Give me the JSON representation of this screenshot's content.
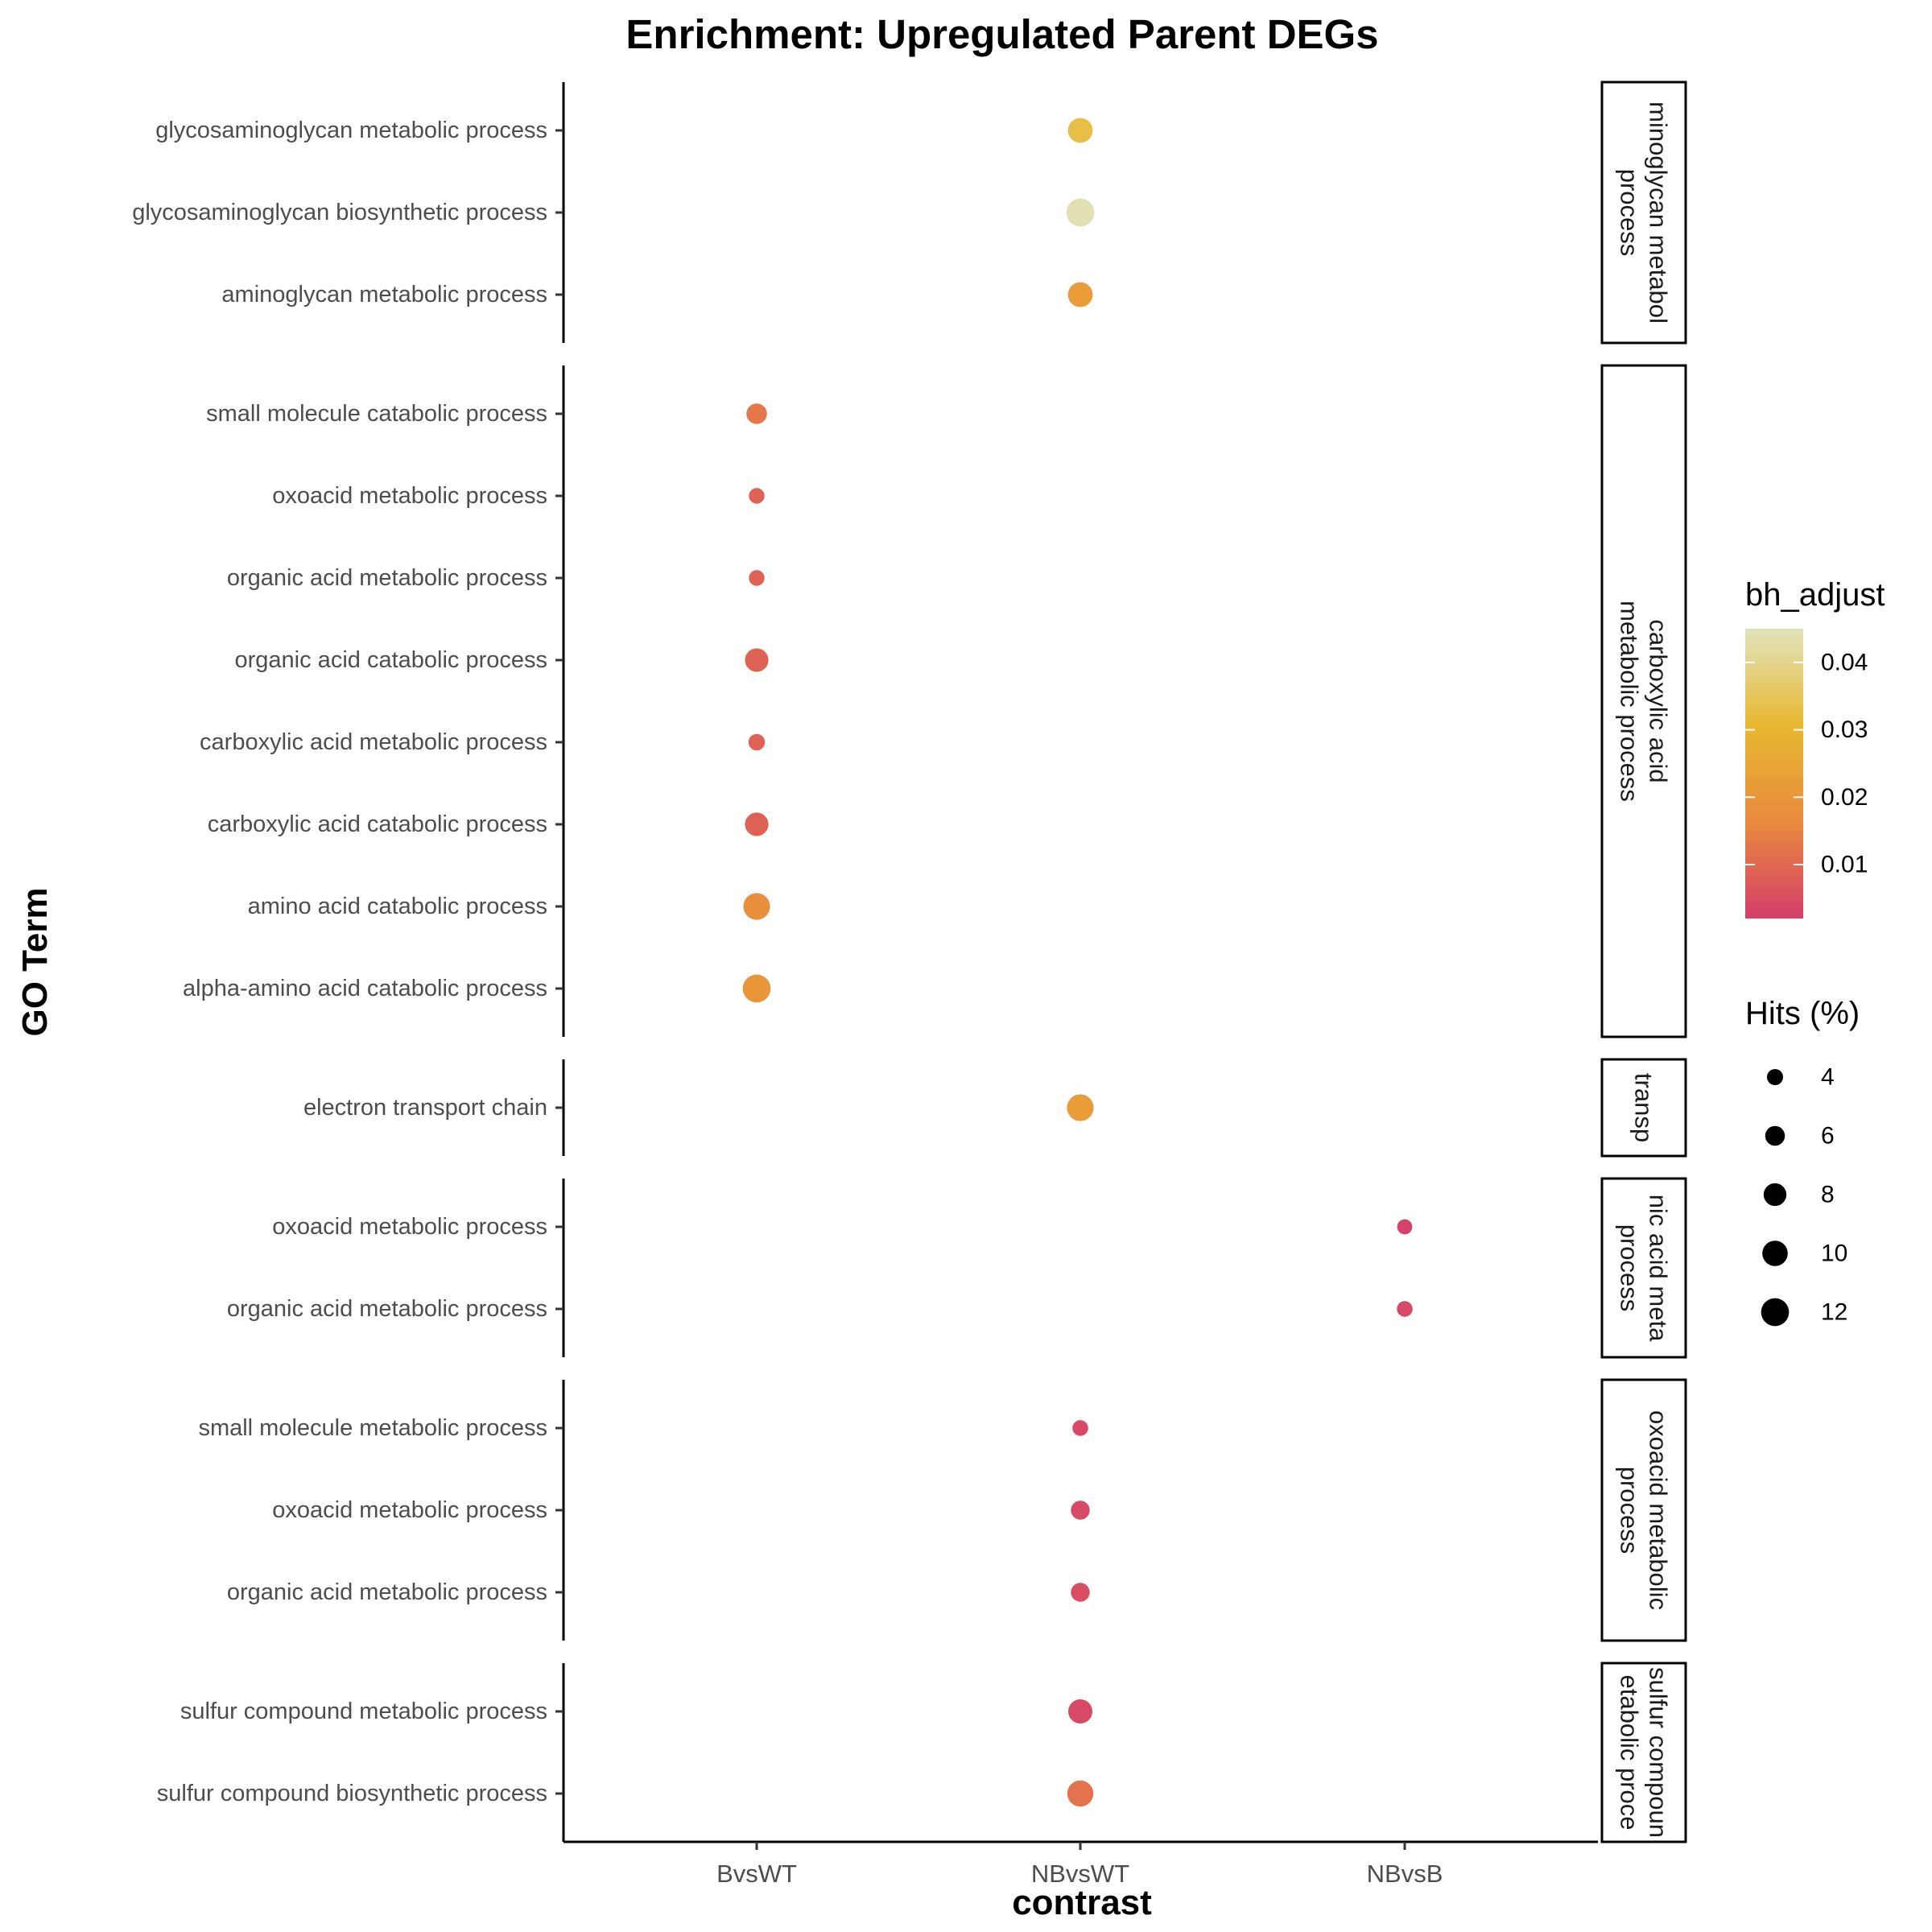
{
  "chart_data": {
    "type": "scatter",
    "title": "Enrichment: Upregulated Parent DEGs",
    "xlabel": "contrast",
    "ylabel": "GO Term",
    "categories": [
      "BvsWT",
      "NBvsWT",
      "NBvsB"
    ],
    "panels": [
      {
        "strip": [
          "minoglycan metabol",
          "process"
        ],
        "rows": [
          {
            "term": "glycosaminoglycan metabolic process",
            "contrast": "NBvsWT",
            "hits": 9.5,
            "bh_adjust": 0.033
          },
          {
            "term": "glycosaminoglycan biosynthetic process",
            "contrast": "NBvsWT",
            "hits": 12.0,
            "bh_adjust": 0.044
          },
          {
            "term": "aminoglycan metabolic process",
            "contrast": "NBvsWT",
            "hits": 9.5,
            "bh_adjust": 0.022
          }
        ]
      },
      {
        "strip": [
          "carboxylic acid",
          "metabolic process"
        ],
        "rows": [
          {
            "term": "small molecule catabolic process",
            "contrast": "BvsWT",
            "hits": 6.5,
            "bh_adjust": 0.013
          },
          {
            "term": "oxoacid metabolic process",
            "contrast": "BvsWT",
            "hits": 3.8,
            "bh_adjust": 0.009
          },
          {
            "term": "organic acid metabolic process",
            "contrast": "BvsWT",
            "hits": 3.8,
            "bh_adjust": 0.009
          },
          {
            "term": "organic acid catabolic process",
            "contrast": "BvsWT",
            "hits": 8.5,
            "bh_adjust": 0.009
          },
          {
            "term": "carboxylic acid metabolic process",
            "contrast": "BvsWT",
            "hits": 4.2,
            "bh_adjust": 0.009
          },
          {
            "term": "carboxylic acid catabolic process",
            "contrast": "BvsWT",
            "hits": 8.5,
            "bh_adjust": 0.009
          },
          {
            "term": "amino acid catabolic process",
            "contrast": "BvsWT",
            "hits": 11.0,
            "bh_adjust": 0.018
          },
          {
            "term": "alpha-amino acid catabolic process",
            "contrast": "BvsWT",
            "hits": 12.0,
            "bh_adjust": 0.02
          }
        ]
      },
      {
        "strip": [
          "transp"
        ],
        "rows": [
          {
            "term": "electron transport chain",
            "contrast": "NBvsWT",
            "hits": 11.0,
            "bh_adjust": 0.022
          }
        ]
      },
      {
        "strip": [
          "nic acid meta",
          "process"
        ],
        "rows": [
          {
            "term": "oxoacid metabolic process",
            "contrast": "NBvsB",
            "hits": 3.5,
            "bh_adjust": 0.003
          },
          {
            "term": "organic acid metabolic process",
            "contrast": "NBvsB",
            "hits": 3.8,
            "bh_adjust": 0.004
          }
        ]
      },
      {
        "strip": [
          "oxoacid metabolic",
          "process"
        ],
        "rows": [
          {
            "term": "small molecule metabolic process",
            "contrast": "NBvsWT",
            "hits": 3.8,
            "bh_adjust": 0.004
          },
          {
            "term": "oxoacid metabolic process",
            "contrast": "NBvsWT",
            "hits": 5.5,
            "bh_adjust": 0.004
          },
          {
            "term": "organic acid metabolic process",
            "contrast": "NBvsWT",
            "hits": 5.5,
            "bh_adjust": 0.005
          }
        ]
      },
      {
        "strip": [
          "sulfur compoun",
          "etabolic proce"
        ],
        "rows": [
          {
            "term": "sulfur compound metabolic process",
            "contrast": "NBvsWT",
            "hits": 9.0,
            "bh_adjust": 0.004
          },
          {
            "term": "sulfur compound biosynthetic process",
            "contrast": "NBvsWT",
            "hits": 10.5,
            "bh_adjust": 0.012
          }
        ]
      }
    ],
    "color_legend": {
      "title": "bh_adjust",
      "ticks": [
        0.04,
        0.03,
        0.02,
        0.01
      ],
      "tick_labels": [
        "0.04",
        "0.03",
        "0.02",
        "0.01"
      ],
      "range": [
        0.002,
        0.045
      ],
      "colors": [
        "#d53e6b",
        "#e98a3e",
        "#e8b830",
        "#e0e3bd"
      ]
    },
    "size_legend": {
      "title": "Hits (%)",
      "values": [
        4,
        6,
        8,
        10,
        12
      ],
      "labels": [
        "4",
        "6",
        "8",
        "10",
        "12"
      ]
    },
    "legend_position": "right",
    "grid": false
  }
}
